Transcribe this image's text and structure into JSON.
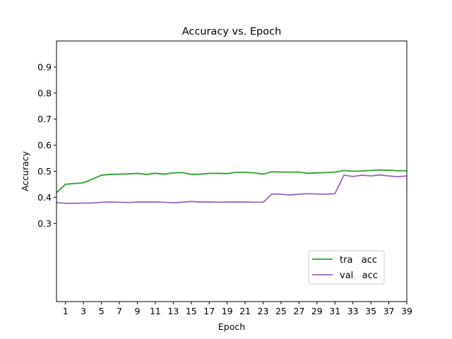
{
  "chart_data": {
    "type": "line",
    "title": "Accuracy vs. Epoch",
    "xlabel": "Epoch",
    "ylabel": "Accuracy",
    "xlim": [
      0,
      39
    ],
    "ylim": [
      0.0,
      1.0
    ],
    "x_ticks": [
      1,
      3,
      5,
      7,
      9,
      11,
      13,
      15,
      17,
      19,
      21,
      23,
      25,
      27,
      29,
      31,
      33,
      35,
      37,
      39
    ],
    "y_ticks": [
      0.3,
      0.4,
      0.5,
      0.6,
      0.7,
      0.8,
      0.9
    ],
    "y_tick_labels": [
      "0.3",
      "0.4",
      "0.5",
      "0.6",
      "0.7",
      "0.8",
      "0.9"
    ],
    "grid": false,
    "legend_position": "lower-right",
    "x": [
      0,
      1,
      2,
      3,
      4,
      5,
      6,
      7,
      8,
      9,
      10,
      11,
      12,
      13,
      14,
      15,
      16,
      17,
      18,
      19,
      20,
      21,
      22,
      23,
      24,
      25,
      26,
      27,
      28,
      29,
      30,
      31,
      32,
      33,
      34,
      35,
      36,
      37,
      38,
      39
    ],
    "series": [
      {
        "name": "tra   acc",
        "color": "#2ca02c",
        "values": [
          0.418,
          0.45,
          0.453,
          0.456,
          0.47,
          0.485,
          0.488,
          0.489,
          0.49,
          0.492,
          0.488,
          0.492,
          0.489,
          0.494,
          0.495,
          0.488,
          0.489,
          0.492,
          0.492,
          0.491,
          0.496,
          0.496,
          0.494,
          0.489,
          0.498,
          0.497,
          0.497,
          0.497,
          0.492,
          0.494,
          0.495,
          0.497,
          0.503,
          0.5,
          0.501,
          0.503,
          0.505,
          0.504,
          0.502,
          0.502
        ]
      },
      {
        "name": "val   acc",
        "color": "#9467bd",
        "values": [
          0.38,
          0.377,
          0.377,
          0.378,
          0.378,
          0.381,
          0.382,
          0.381,
          0.38,
          0.382,
          0.382,
          0.382,
          0.381,
          0.379,
          0.381,
          0.384,
          0.382,
          0.382,
          0.381,
          0.382,
          0.382,
          0.382,
          0.381,
          0.381,
          0.413,
          0.412,
          0.409,
          0.412,
          0.414,
          0.413,
          0.412,
          0.414,
          0.485,
          0.48,
          0.485,
          0.482,
          0.486,
          0.482,
          0.479,
          0.482
        ]
      }
    ]
  }
}
